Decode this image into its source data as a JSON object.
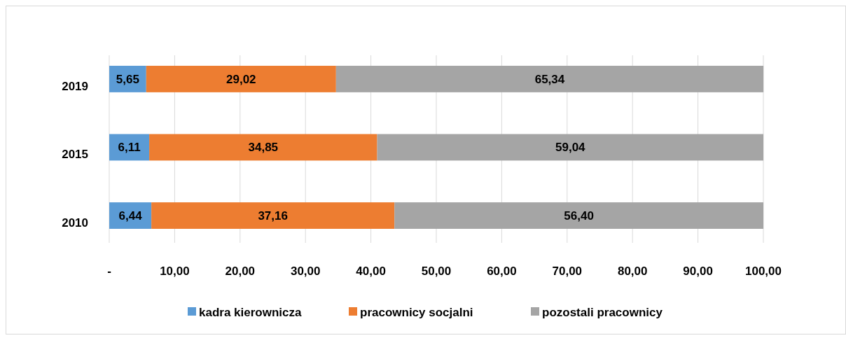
{
  "chart_data": {
    "type": "bar",
    "orientation": "horizontal",
    "stacked": true,
    "categories": [
      "2019",
      "2015",
      "2010"
    ],
    "series": [
      {
        "name": "kadra kierownicza",
        "color": "#5b9bd5",
        "values": [
          5.65,
          6.11,
          6.44
        ],
        "value_labels": [
          "5,65",
          "6,11",
          "6,44"
        ]
      },
      {
        "name": "pracownicy socjalni",
        "color": "#ed7d31",
        "values": [
          29.02,
          34.85,
          37.16
        ],
        "value_labels": [
          "29,02",
          "34,85",
          "37,16"
        ]
      },
      {
        "name": "pozostali pracownicy",
        "color": "#a5a5a5",
        "values": [
          65.34,
          59.04,
          56.4
        ],
        "value_labels": [
          "65,34",
          "59,04",
          "56,40"
        ]
      }
    ],
    "xlim": [
      0,
      100
    ],
    "xticks": [
      {
        "value": 0,
        "label": "-"
      },
      {
        "value": 10,
        "label": "10,00"
      },
      {
        "value": 20,
        "label": "20,00"
      },
      {
        "value": 30,
        "label": "30,00"
      },
      {
        "value": 40,
        "label": "40,00"
      },
      {
        "value": 50,
        "label": "50,00"
      },
      {
        "value": 60,
        "label": "60,00"
      },
      {
        "value": 70,
        "label": "70,00"
      },
      {
        "value": 80,
        "label": "80,00"
      },
      {
        "value": 90,
        "label": "90,00"
      },
      {
        "value": 100,
        "label": "100,00"
      }
    ],
    "grid": "x",
    "legend": "bottom"
  }
}
